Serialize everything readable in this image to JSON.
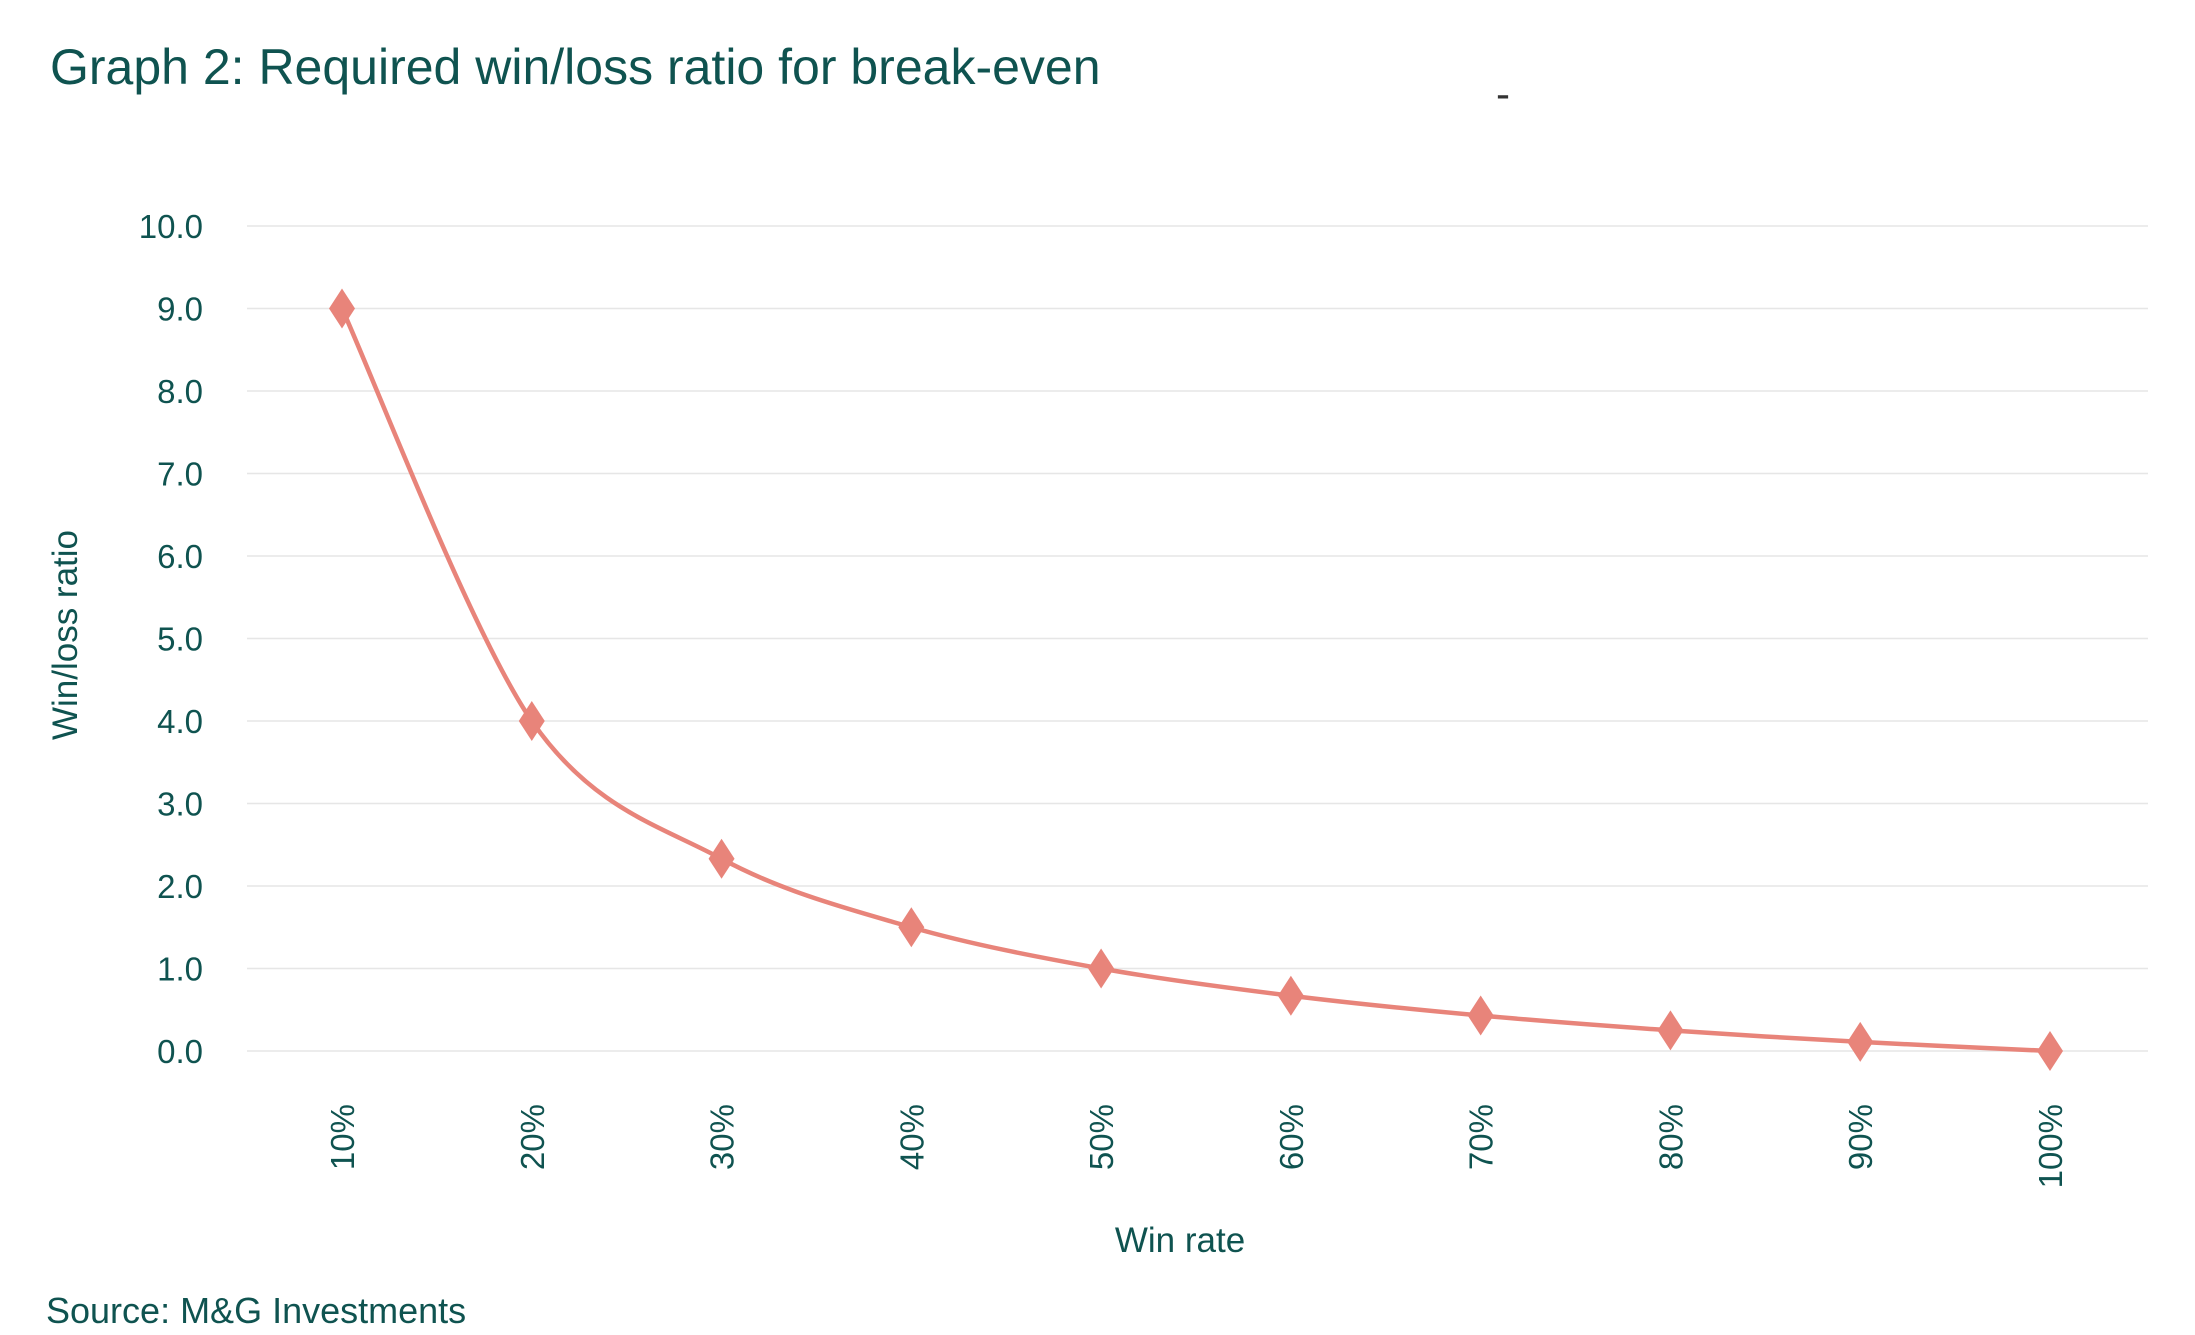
{
  "title": "Graph 2: Required win/loss ratio for break-even",
  "stray_mark": "-",
  "source": "Source: M&G Investments",
  "colors": {
    "text": "#0f5350",
    "series": "#e8847a",
    "grid": "#e6e6e6"
  },
  "chart_data": {
    "type": "line",
    "title": "Graph 2: Required win/loss ratio for break-even",
    "xlabel": "Win rate",
    "ylabel": "Win/loss ratio",
    "categories": [
      "10%",
      "20%",
      "30%",
      "40%",
      "50%",
      "60%",
      "70%",
      "80%",
      "90%",
      "100%"
    ],
    "series": [
      {
        "values": [
          9.0,
          4.0,
          2.33,
          1.5,
          1.0,
          0.67,
          0.43,
          0.25,
          0.11,
          0.0
        ],
        "marker": "diamond",
        "smooth": true
      }
    ],
    "ylim": [
      0,
      10
    ],
    "yticks": [
      "0.0",
      "1.0",
      "2.0",
      "3.0",
      "4.0",
      "5.0",
      "6.0",
      "7.0",
      "8.0",
      "9.0",
      "10.0"
    ],
    "grid": true,
    "legend": "none"
  }
}
